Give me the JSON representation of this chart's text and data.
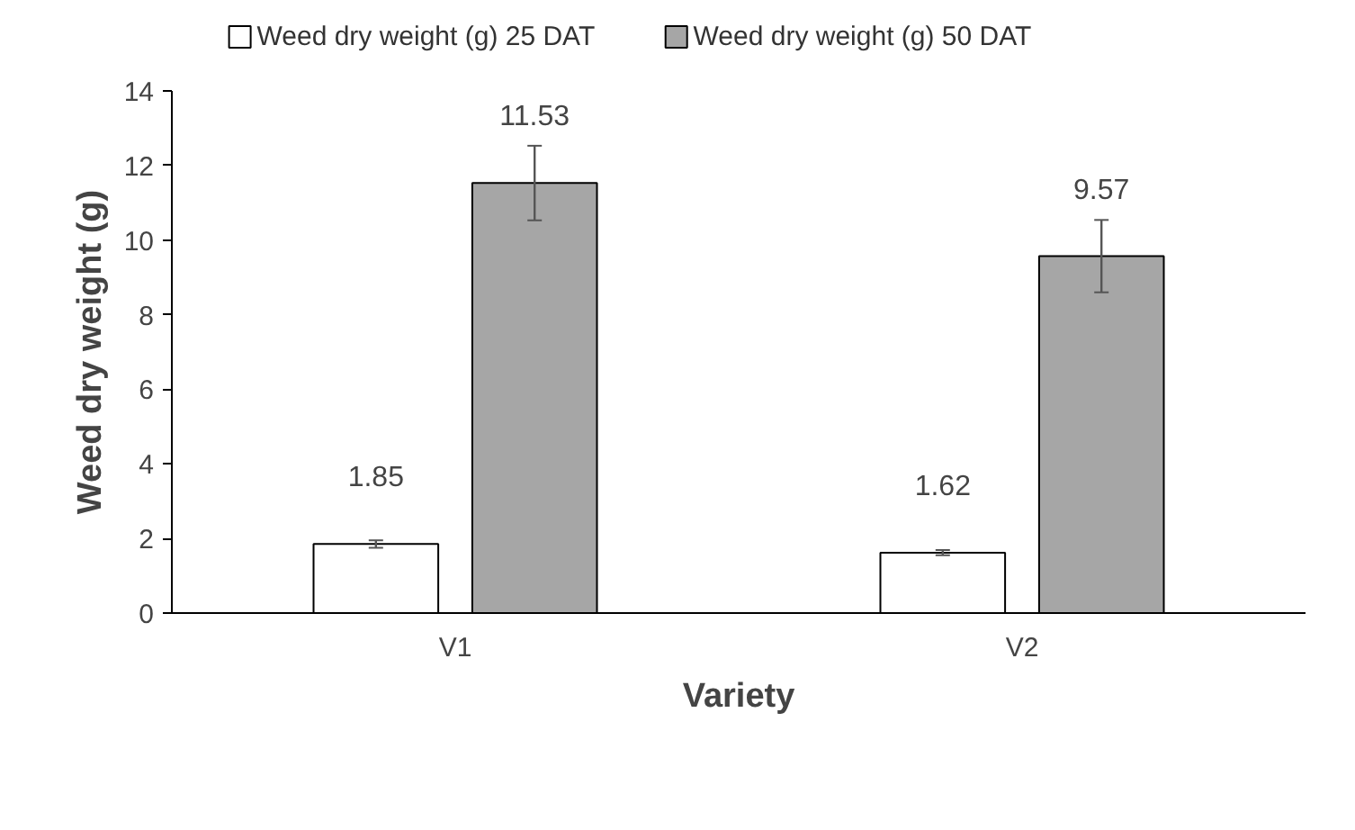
{
  "chart_data": {
    "type": "bar",
    "xlabel": "Variety",
    "ylabel": "Weed dry weight (g)",
    "categories": [
      "V1",
      "V2"
    ],
    "series": [
      {
        "name": "Weed dry weight (g) 25 DAT",
        "color": "#ffffff",
        "values": [
          1.85,
          1.62
        ],
        "errors": [
          0.1,
          0.07
        ]
      },
      {
        "name": "Weed dry weight (g) 50 DAT",
        "color": "#a6a6a6",
        "values": [
          11.53,
          9.57
        ],
        "errors": [
          1.0,
          0.97
        ]
      }
    ],
    "ylim": [
      0,
      14
    ],
    "yticks": [
      0,
      2,
      4,
      6,
      8,
      10,
      12,
      14
    ],
    "grid": false,
    "legend": "top",
    "data_labels": true
  }
}
